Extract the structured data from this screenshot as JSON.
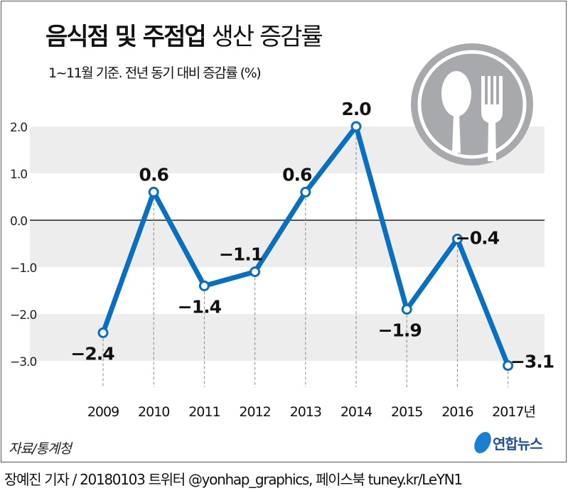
{
  "title": {
    "bold": "음식점 및 주점업",
    "light": "생산 증감률"
  },
  "subtitle": "1~11월 기준. 전년 동기 대비 증감률 (%)",
  "source": "자료/통계청",
  "logo_text": "연합뉴스",
  "credit": "장예진 기자 / 20180103 트위터 @yonhap_graphics, 페이스북 tuney.kr/LeYN1",
  "icon": "spoon-fork-icon",
  "colors": {
    "line": "#0a6fbf",
    "band": "#ededed",
    "icon": "#a7a9ac"
  },
  "chart_data": {
    "type": "line",
    "title": "음식점 및 주점업 생산 증감률",
    "x": [
      "2009",
      "2010",
      "2011",
      "2012",
      "2013",
      "2014",
      "2015",
      "2016",
      "2017년"
    ],
    "values": [
      -2.4,
      0.6,
      -1.4,
      -1.1,
      0.6,
      2.0,
      -1.9,
      -0.4,
      -3.1
    ],
    "labels": [
      "−2.4",
      "0.6",
      "−1.4",
      "−1.1",
      "0.6",
      "2.0",
      "−1.9",
      "−0.4",
      "−3.1"
    ],
    "yticks": [
      "2.0",
      "1.0",
      "0.0",
      "−1.0",
      "−2.0",
      "−3.0"
    ],
    "ytick_values": [
      2,
      1,
      0,
      -1,
      -2,
      -3
    ],
    "ylim": [
      -3,
      2
    ],
    "ylabel": "%"
  }
}
